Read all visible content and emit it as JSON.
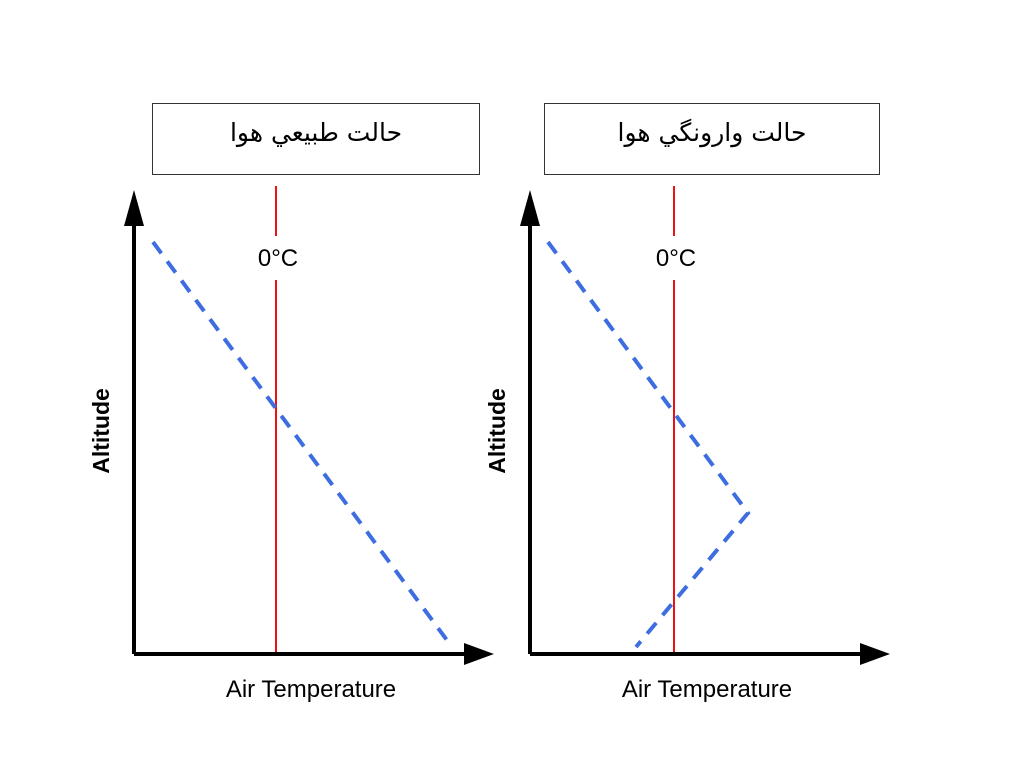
{
  "colors": {
    "axis": "#000000",
    "freezing_line": "#ee1111",
    "temperature_profile": "#3d6de0"
  },
  "panels": [
    {
      "title": "حالت طبيعي هوا",
      "xlabel": "Air Temperature",
      "ylabel": "Altitude",
      "reference_label": "0°C"
    },
    {
      "title": "حالت وارونگي هوا",
      "xlabel": "Air Temperature",
      "ylabel": "Altitude",
      "reference_label": "0°C"
    }
  ]
}
